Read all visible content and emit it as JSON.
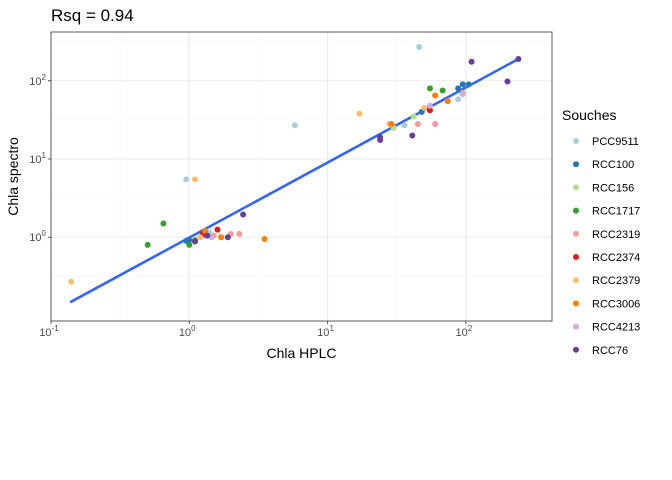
{
  "chart_data": {
    "type": "scatter",
    "title": "Rsq = 0.94",
    "xlabel": "Chla HPLC",
    "ylabel": "Chla spectro",
    "xscale": "log10",
    "yscale": "log10",
    "xlim": [
      0.1,
      420
    ],
    "ylim": [
      0.085,
      420
    ],
    "grid": true,
    "x_ticks": [
      {
        "value": 0.1,
        "base": "10",
        "exp": "-1"
      },
      {
        "value": 1,
        "base": "10",
        "exp": "0"
      },
      {
        "value": 10,
        "base": "10",
        "exp": "1"
      },
      {
        "value": 100,
        "base": "10",
        "exp": "2"
      }
    ],
    "y_ticks": [
      {
        "value": 1,
        "base": "10",
        "exp": "0"
      },
      {
        "value": 10,
        "base": "10",
        "exp": "1"
      },
      {
        "value": 100,
        "base": "10",
        "exp": "2"
      }
    ],
    "legend": {
      "title": "Souches",
      "position": "right"
    },
    "fit_line": {
      "color": "#3366FF",
      "x": [
        0.14,
        240
      ],
      "y": [
        0.15,
        190
      ]
    },
    "series": [
      {
        "name": "PCC9511",
        "color": "#A6CEE3",
        "points": [
          [
            46,
            270
          ],
          [
            5.8,
            27
          ],
          [
            0.95,
            5.5
          ],
          [
            36,
            27
          ],
          [
            88,
            58
          ],
          [
            1.4,
            1.15
          ]
        ]
      },
      {
        "name": "RCC100",
        "color": "#1F78B4",
        "points": [
          [
            95,
            90
          ],
          [
            105,
            90
          ],
          [
            88,
            80
          ],
          [
            48,
            40
          ],
          [
            1.0,
            0.92
          ],
          [
            0.95,
            0.9
          ]
        ]
      },
      {
        "name": "RCC156",
        "color": "#B2DF8A",
        "points": [
          [
            30,
            25
          ],
          [
            42,
            35
          ],
          [
            1.1,
            0.95
          ]
        ]
      },
      {
        "name": "RCC1717",
        "color": "#33A02C",
        "points": [
          [
            55,
            80
          ],
          [
            68,
            75
          ],
          [
            0.65,
            1.5
          ],
          [
            0.5,
            0.8
          ],
          [
            1.0,
            0.8
          ],
          [
            1.1,
            0.88
          ]
        ]
      },
      {
        "name": "RCC2319",
        "color": "#FB9A99",
        "points": [
          [
            45,
            28
          ],
          [
            60,
            28
          ],
          [
            2.0,
            1.1
          ],
          [
            2.3,
            1.1
          ],
          [
            1.3,
            1.05
          ],
          [
            95,
            70
          ],
          [
            1.5,
            1.05
          ]
        ]
      },
      {
        "name": "RCC2374",
        "color": "#E31A1C",
        "points": [
          [
            55,
            42
          ],
          [
            1.6,
            1.25
          ],
          [
            95,
            68
          ],
          [
            1.25,
            1.1
          ]
        ]
      },
      {
        "name": "RCC2379",
        "color": "#FDBF6F",
        "points": [
          [
            0.14,
            0.27
          ],
          [
            1.1,
            5.5
          ],
          [
            17,
            38
          ],
          [
            28,
            28
          ],
          [
            50,
            45
          ],
          [
            1.2,
            1.0
          ]
        ]
      },
      {
        "name": "RCC3006",
        "color": "#FF7F00",
        "points": [
          [
            3.5,
            0.95
          ],
          [
            1.7,
            1.0
          ],
          [
            60,
            65
          ],
          [
            74,
            55
          ],
          [
            29,
            28
          ],
          [
            1.3,
            1.2
          ]
        ]
      },
      {
        "name": "RCC4213",
        "color": "#CAB2D6",
        "points": [
          [
            55,
            48
          ],
          [
            95,
            68
          ],
          [
            1.45,
            1.0
          ]
        ]
      },
      {
        "name": "RCC76",
        "color": "#6A3D9A",
        "points": [
          [
            240,
            190
          ],
          [
            110,
            175
          ],
          [
            200,
            98
          ],
          [
            41,
            20
          ],
          [
            24,
            19
          ],
          [
            24,
            17.5
          ],
          [
            2.45,
            1.95
          ],
          [
            1.9,
            1.0
          ],
          [
            1.1,
            0.9
          ],
          [
            1.35,
            1.05
          ]
        ]
      }
    ]
  }
}
